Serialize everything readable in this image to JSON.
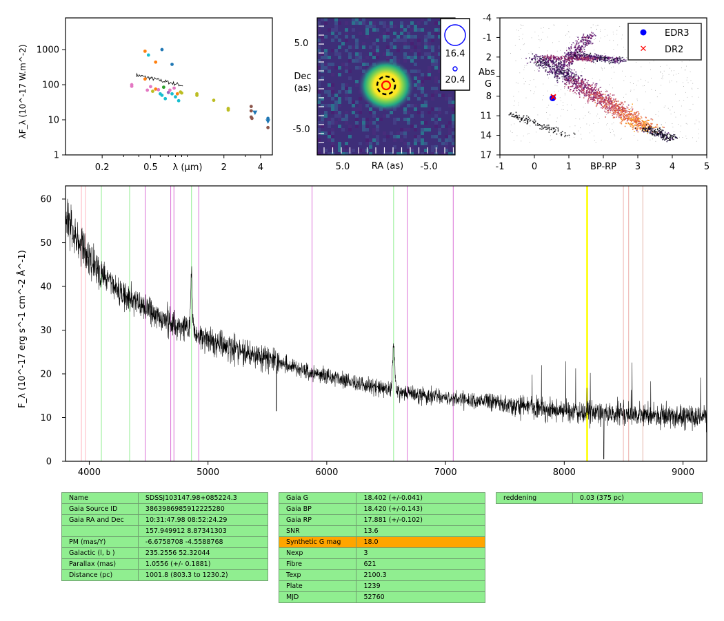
{
  "colors": {
    "spectrum": "#000000",
    "green_line": "#90ee90",
    "red_line": "#ffb6c1",
    "violet_line": "#da70d6",
    "yellow_band": "#ffff00",
    "table_bg": "#90ee90",
    "table_highlight": "#ffa500",
    "edr3": "#0000ff",
    "dr2": "#ff0000"
  },
  "chart_data": [
    {
      "type": "scatter",
      "name": "sed",
      "ylabel": "λF_λ (10^-17 W.m^-2)",
      "xlabel": "λ (μm)",
      "xscale": "log",
      "yscale": "log",
      "xlim": [
        0.1,
        5.0
      ],
      "ylim": [
        1,
        8000
      ],
      "xticks": [
        "0.2",
        "0.5",
        "2",
        "4"
      ],
      "yticks": [
        "1",
        "10",
        "100",
        "1000"
      ],
      "points": [
        {
          "x": 0.35,
          "y": 100,
          "c": "#e377c2"
        },
        {
          "x": 0.35,
          "y": 90,
          "c": "#e377c2"
        },
        {
          "x": 0.45,
          "y": 900,
          "c": "#ff7f0e"
        },
        {
          "x": 0.48,
          "y": 700,
          "c": "#17becf"
        },
        {
          "x": 0.55,
          "y": 440,
          "c": "#ff7f0e"
        },
        {
          "x": 0.62,
          "y": 1000,
          "c": "#1f77b4"
        },
        {
          "x": 0.75,
          "y": 380,
          "c": "#1f77b4"
        },
        {
          "x": 0.45,
          "y": 145,
          "c": "#ff7f0e"
        },
        {
          "x": 0.47,
          "y": 70,
          "c": "#e377c2"
        },
        {
          "x": 0.5,
          "y": 88,
          "c": "#e377c2"
        },
        {
          "x": 0.52,
          "y": 65,
          "c": "#bcbd22"
        },
        {
          "x": 0.55,
          "y": 75,
          "c": "#ff7f0e"
        },
        {
          "x": 0.58,
          "y": 72,
          "c": "#e377c2"
        },
        {
          "x": 0.6,
          "y": 55,
          "c": "#17becf"
        },
        {
          "x": 0.62,
          "y": 50,
          "c": "#17becf"
        },
        {
          "x": 0.64,
          "y": 85,
          "c": "#2ca02c"
        },
        {
          "x": 0.66,
          "y": 40,
          "c": "#17becf"
        },
        {
          "x": 0.7,
          "y": 60,
          "c": "#9467bd"
        },
        {
          "x": 0.72,
          "y": 70,
          "c": "#e377c2"
        },
        {
          "x": 0.75,
          "y": 55,
          "c": "#17becf"
        },
        {
          "x": 0.78,
          "y": 80,
          "c": "#e377c2"
        },
        {
          "x": 0.8,
          "y": 45,
          "c": "#17becf"
        },
        {
          "x": 0.83,
          "y": 55,
          "c": "#ff7f0e"
        },
        {
          "x": 0.85,
          "y": 35,
          "c": "#17becf"
        },
        {
          "x": 0.88,
          "y": 62,
          "c": "#bcbd22"
        },
        {
          "x": 0.9,
          "y": 58,
          "c": "#bcbd22"
        },
        {
          "x": 1.2,
          "y": 55,
          "c": "#bcbd22"
        },
        {
          "x": 1.2,
          "y": 50,
          "c": "#bcbd22"
        },
        {
          "x": 1.65,
          "y": 36,
          "c": "#bcbd22"
        },
        {
          "x": 2.17,
          "y": 21,
          "c": "#bcbd22"
        },
        {
          "x": 2.17,
          "y": 19,
          "c": "#bcbd22"
        },
        {
          "x": 3.35,
          "y": 24,
          "c": "#8c564b"
        },
        {
          "x": 3.35,
          "y": 18,
          "c": "#8c564b"
        },
        {
          "x": 3.35,
          "y": 12,
          "c": "#8c564b"
        },
        {
          "x": 3.4,
          "y": 11,
          "c": "#8c564b"
        },
        {
          "x": 3.6,
          "y": 16,
          "c": "#1f77b4",
          "shape": "tri"
        },
        {
          "x": 4.6,
          "y": 11,
          "c": "#1f77b4"
        },
        {
          "x": 4.6,
          "y": 9,
          "c": "#1f77b4",
          "shape": "tri"
        },
        {
          "x": 4.6,
          "y": 6,
          "c": "#8c564b"
        }
      ],
      "spectrum_overlay": {
        "x_start": 0.38,
        "x_end": 0.92,
        "y_start": 190,
        "y_end": 95
      }
    },
    {
      "type": "heatmap",
      "name": "sky-image",
      "xlabel": "RA (as)",
      "ylabel": "Dec (as)",
      "xticks": [
        "5.0",
        "-5.0"
      ],
      "yticks": [
        "5.0",
        "-5.0"
      ],
      "legend": {
        "labels": [
          "16.4",
          "20.4"
        ]
      }
    },
    {
      "type": "scatter",
      "name": "hr-diagram",
      "xlabel": "BP-RP",
      "ylabel": "Abs G",
      "xlim": [
        -1,
        5
      ],
      "ylim": [
        17,
        -4
      ],
      "xticks": [
        "-1",
        "0",
        "1",
        "BP-RP",
        "3",
        "4",
        "5"
      ],
      "yticks": [
        "-4",
        "-1",
        "2",
        "5",
        "8",
        "11",
        "14",
        "17"
      ],
      "legend": {
        "position": "top-right",
        "entries": [
          "EDR3",
          "DR2"
        ]
      },
      "points": [
        {
          "series": "EDR3",
          "x": 0.53,
          "y": 8.3
        },
        {
          "series": "DR2",
          "x": 0.55,
          "y": 8.1
        }
      ]
    },
    {
      "type": "line",
      "name": "spectrum",
      "ylabel": "F_λ (10^-17 erg s^-1 cm^-2 Å^-1)",
      "xlim": [
        3800,
        9200
      ],
      "ylim": [
        0,
        63
      ],
      "xticks": [
        "4000",
        "5000",
        "6000",
        "7000",
        "8000",
        "9000"
      ],
      "yticks": [
        "0",
        "10",
        "20",
        "30",
        "40",
        "50",
        "60"
      ],
      "continuum": [
        [
          3800,
          56
        ],
        [
          3900,
          50
        ],
        [
          4100,
          43
        ],
        [
          4300,
          38
        ],
        [
          4600,
          33
        ],
        [
          4900,
          29
        ],
        [
          5200,
          26
        ],
        [
          5600,
          22.5
        ],
        [
          6000,
          19.5
        ],
        [
          6400,
          17
        ],
        [
          6800,
          15
        ],
        [
          7200,
          14
        ],
        [
          7600,
          12.8
        ],
        [
          8000,
          11.5
        ],
        [
          8500,
          10.8
        ],
        [
          9200,
          10
        ]
      ],
      "emission_lines": [
        {
          "x": 4861,
          "peak": 12
        },
        {
          "x": 6563,
          "peak": 11
        }
      ],
      "green_lines": [
        4102,
        4340,
        4861,
        6563,
        8498,
        8542,
        8662
      ],
      "red_lines": [
        3934,
        3968,
        8498,
        8542,
        8662
      ],
      "violet_lines": [
        4471,
        4686,
        4713,
        4922,
        5876,
        6678,
        7065
      ],
      "yellow_band": [
        8185,
        8200
      ]
    }
  ],
  "tables": {
    "t1": [
      [
        "Name",
        "SDSSJ103147.98+085224.3"
      ],
      [
        "Gaia Source ID",
        "3863986985912225280"
      ],
      [
        "Gaia RA and Dec",
        "10:31:47.98    08:52:24.29"
      ],
      [
        "",
        "157.949912    8.87341303"
      ],
      [
        "PM (mas/Y)",
        "-6.6758708    -4.5588768"
      ],
      [
        "Galactic (l, b )",
        "235.2556    52.32044"
      ],
      [
        "Parallax (mas)",
        "1.0556 (+/- 0.1881)"
      ],
      [
        "Distance (pc)",
        "1001.8 (803.3 to 1230.2)"
      ]
    ],
    "t2": [
      [
        "Gaia G",
        "18.402 (+/-0.041)"
      ],
      [
        "Gaia BP",
        "18.420 (+/-0.143)"
      ],
      [
        "Gaia RP",
        "17.881 (+/-0.102)"
      ],
      [
        "SNR",
        "13.6"
      ],
      [
        "Synthetic G mag",
        "18.0"
      ],
      [
        "Nexp",
        "3"
      ],
      [
        "Fibre",
        "621"
      ],
      [
        "Texp",
        "2100.3"
      ],
      [
        "Plate",
        "1239"
      ],
      [
        "MJD",
        "52760"
      ]
    ],
    "t3": [
      [
        "reddening",
        "0.03 (375 pc)"
      ]
    ],
    "highlight_row": "Synthetic G mag"
  }
}
